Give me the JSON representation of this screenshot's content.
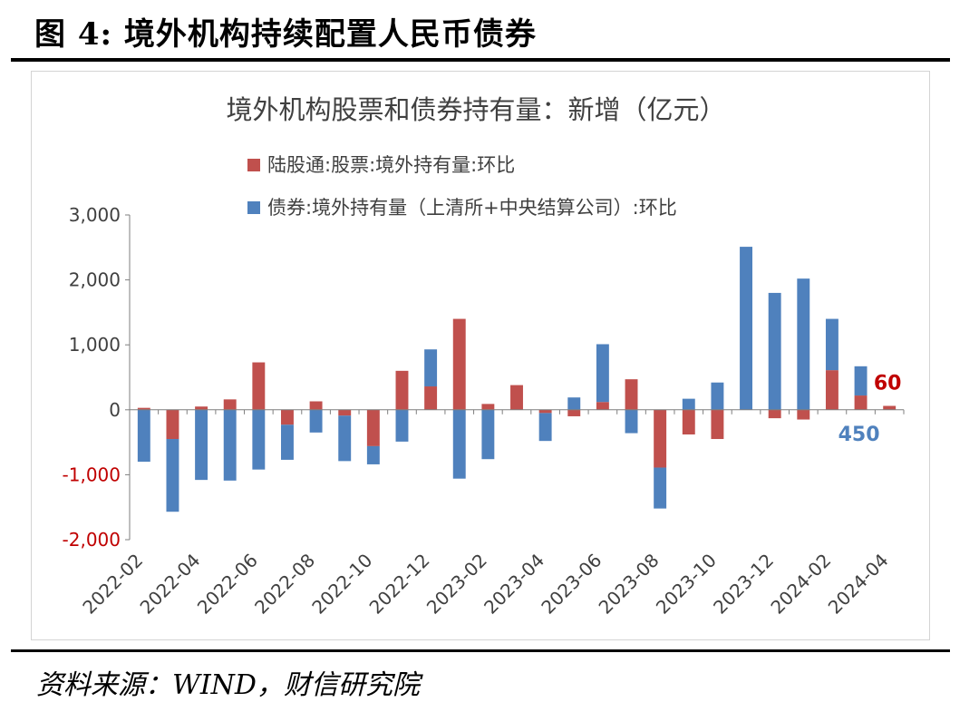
{
  "figure": {
    "title": "图 4:  境外机构持续配置人民币债券",
    "source": "资料来源：WIND，财信研究院"
  },
  "colors": {
    "stock": "#C0504D",
    "bond": "#4F81BD",
    "negative_tick": "#C00000",
    "axis_text": "#404040"
  },
  "chart_data": {
    "type": "bar",
    "stacked": true,
    "title": "境外机构股票和债券持有量：新增（亿元）",
    "xlabel": "",
    "ylabel": "",
    "ylim": [
      -2000,
      3000
    ],
    "yticks": [
      -2000,
      -1000,
      0,
      1000,
      2000,
      3000
    ],
    "ytick_labels": [
      "-2,000",
      "-1,000",
      "0",
      "1,000",
      "2,000",
      "3,000"
    ],
    "grid": false,
    "legend_position": "top",
    "categories": [
      "2022-02",
      "2022-03",
      "2022-04",
      "2022-05",
      "2022-06",
      "2022-07",
      "2022-08",
      "2022-09",
      "2022-10",
      "2022-11",
      "2022-12",
      "2023-01",
      "2023-02",
      "2023-03",
      "2023-04",
      "2023-05",
      "2023-06",
      "2023-07",
      "2023-08",
      "2023-09",
      "2023-10",
      "2023-11",
      "2023-12",
      "2024-01",
      "2024-02",
      "2024-03",
      "2024-04"
    ],
    "tick_labels": [
      "2022-02",
      "2022-04",
      "2022-06",
      "2022-08",
      "2022-10",
      "2022-12",
      "2023-02",
      "2023-04",
      "2023-06",
      "2023-08",
      "2023-10",
      "2023-12",
      "2024-02",
      "2024-04"
    ],
    "series": [
      {
        "name": "陆股通:股票:境外持有量:环比",
        "values": [
          30,
          -450,
          50,
          160,
          730,
          -230,
          130,
          -90,
          -560,
          600,
          360,
          1400,
          90,
          380,
          -50,
          -100,
          120,
          470,
          -890,
          -380,
          -450,
          0,
          -130,
          -150,
          610,
          220,
          60
        ]
      },
      {
        "name": "债券:境外持有量（上清所+中央结算公司）:环比",
        "values": [
          -800,
          -1120,
          -1080,
          -1090,
          -920,
          -540,
          -350,
          -700,
          -280,
          -490,
          570,
          -1060,
          -760,
          0,
          -430,
          190,
          890,
          -360,
          -630,
          170,
          420,
          2510,
          1800,
          2020,
          790,
          450,
          0
        ]
      }
    ],
    "annotations": [
      {
        "text": "60",
        "series": 0,
        "category": "2024-04"
      },
      {
        "text": "450",
        "series": 1,
        "category": "2024-03"
      }
    ]
  }
}
